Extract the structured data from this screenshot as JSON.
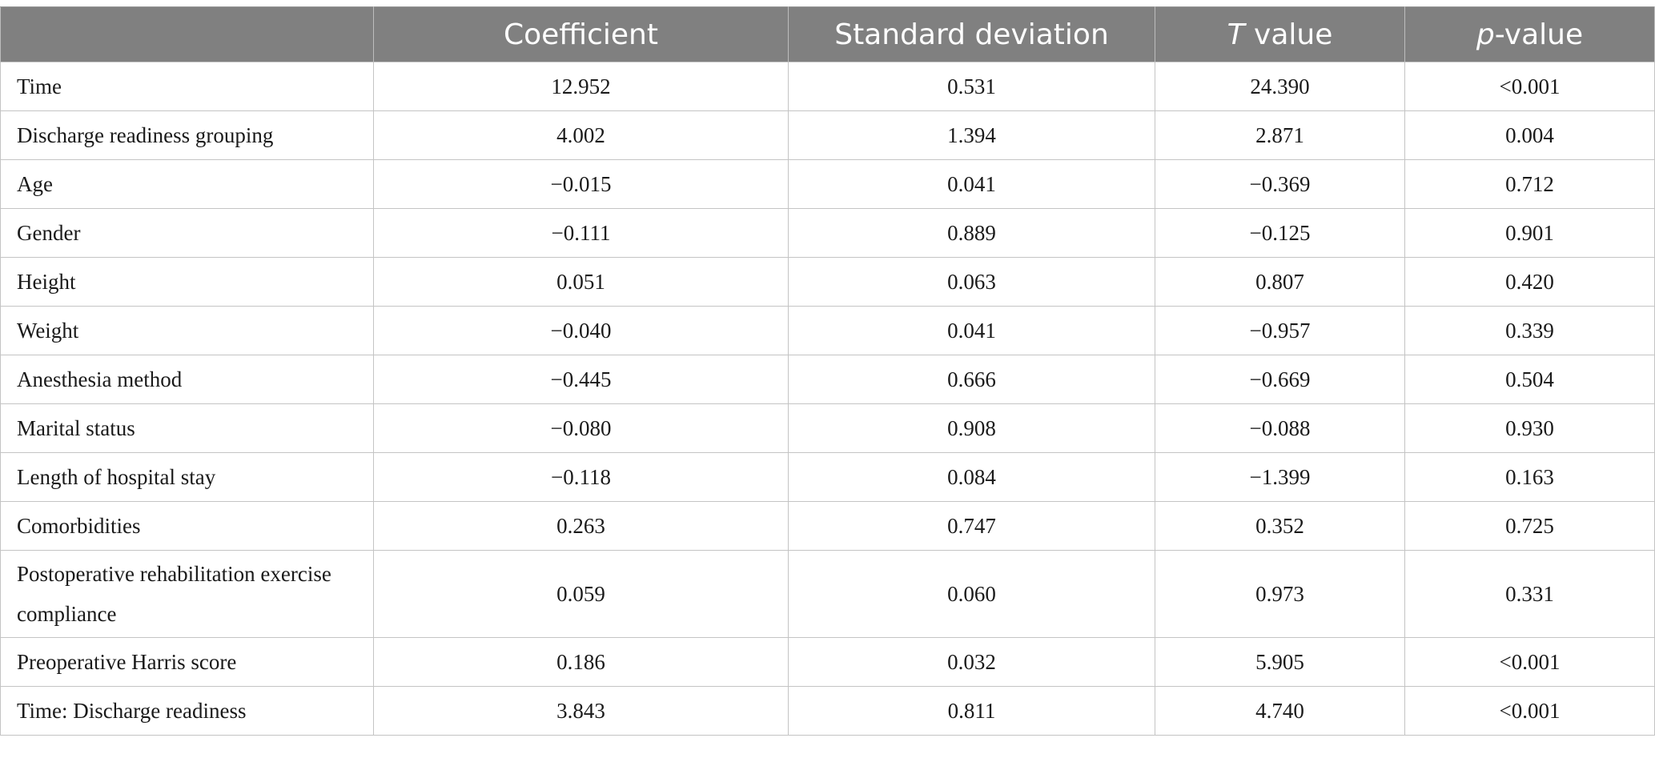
{
  "table": {
    "headers": {
      "col0": "",
      "col1": "Coefficient",
      "col2": "Standard deviation",
      "col3_italic": "T",
      "col3_rest": " value",
      "col4_italic": "p",
      "col4_rest": "-value"
    },
    "rows": [
      {
        "label": "Time",
        "coefficient": "12.952",
        "sd": "0.531",
        "t": "24.390",
        "p": "<0.001"
      },
      {
        "label": "Discharge readiness grouping",
        "coefficient": "4.002",
        "sd": "1.394",
        "t": "2.871",
        "p": "0.004"
      },
      {
        "label": "Age",
        "coefficient": "−0.015",
        "sd": "0.041",
        "t": "−0.369",
        "p": "0.712"
      },
      {
        "label": "Gender",
        "coefficient": "−0.111",
        "sd": "0.889",
        "t": "−0.125",
        "p": "0.901"
      },
      {
        "label": "Height",
        "coefficient": "0.051",
        "sd": "0.063",
        "t": "0.807",
        "p": "0.420"
      },
      {
        "label": "Weight",
        "coefficient": "−0.040",
        "sd": "0.041",
        "t": "−0.957",
        "p": "0.339"
      },
      {
        "label": "Anesthesia method",
        "coefficient": "−0.445",
        "sd": "0.666",
        "t": "−0.669",
        "p": "0.504"
      },
      {
        "label": "Marital status",
        "coefficient": "−0.080",
        "sd": "0.908",
        "t": "−0.088",
        "p": "0.930"
      },
      {
        "label": "Length of hospital stay",
        "coefficient": "−0.118",
        "sd": "0.084",
        "t": "−1.399",
        "p": "0.163"
      },
      {
        "label": "Comorbidities",
        "coefficient": "0.263",
        "sd": "0.747",
        "t": "0.352",
        "p": "0.725"
      },
      {
        "label": "Postoperative rehabilitation exercise compliance",
        "coefficient": "0.059",
        "sd": "0.060",
        "t": "0.973",
        "p": "0.331"
      },
      {
        "label": "Preoperative Harris score",
        "coefficient": "0.186",
        "sd": "0.032",
        "t": "5.905",
        "p": "<0.001"
      },
      {
        "label": "Time: Discharge readiness",
        "coefficient": "3.843",
        "sd": "0.811",
        "t": "4.740",
        "p": "<0.001"
      }
    ]
  }
}
